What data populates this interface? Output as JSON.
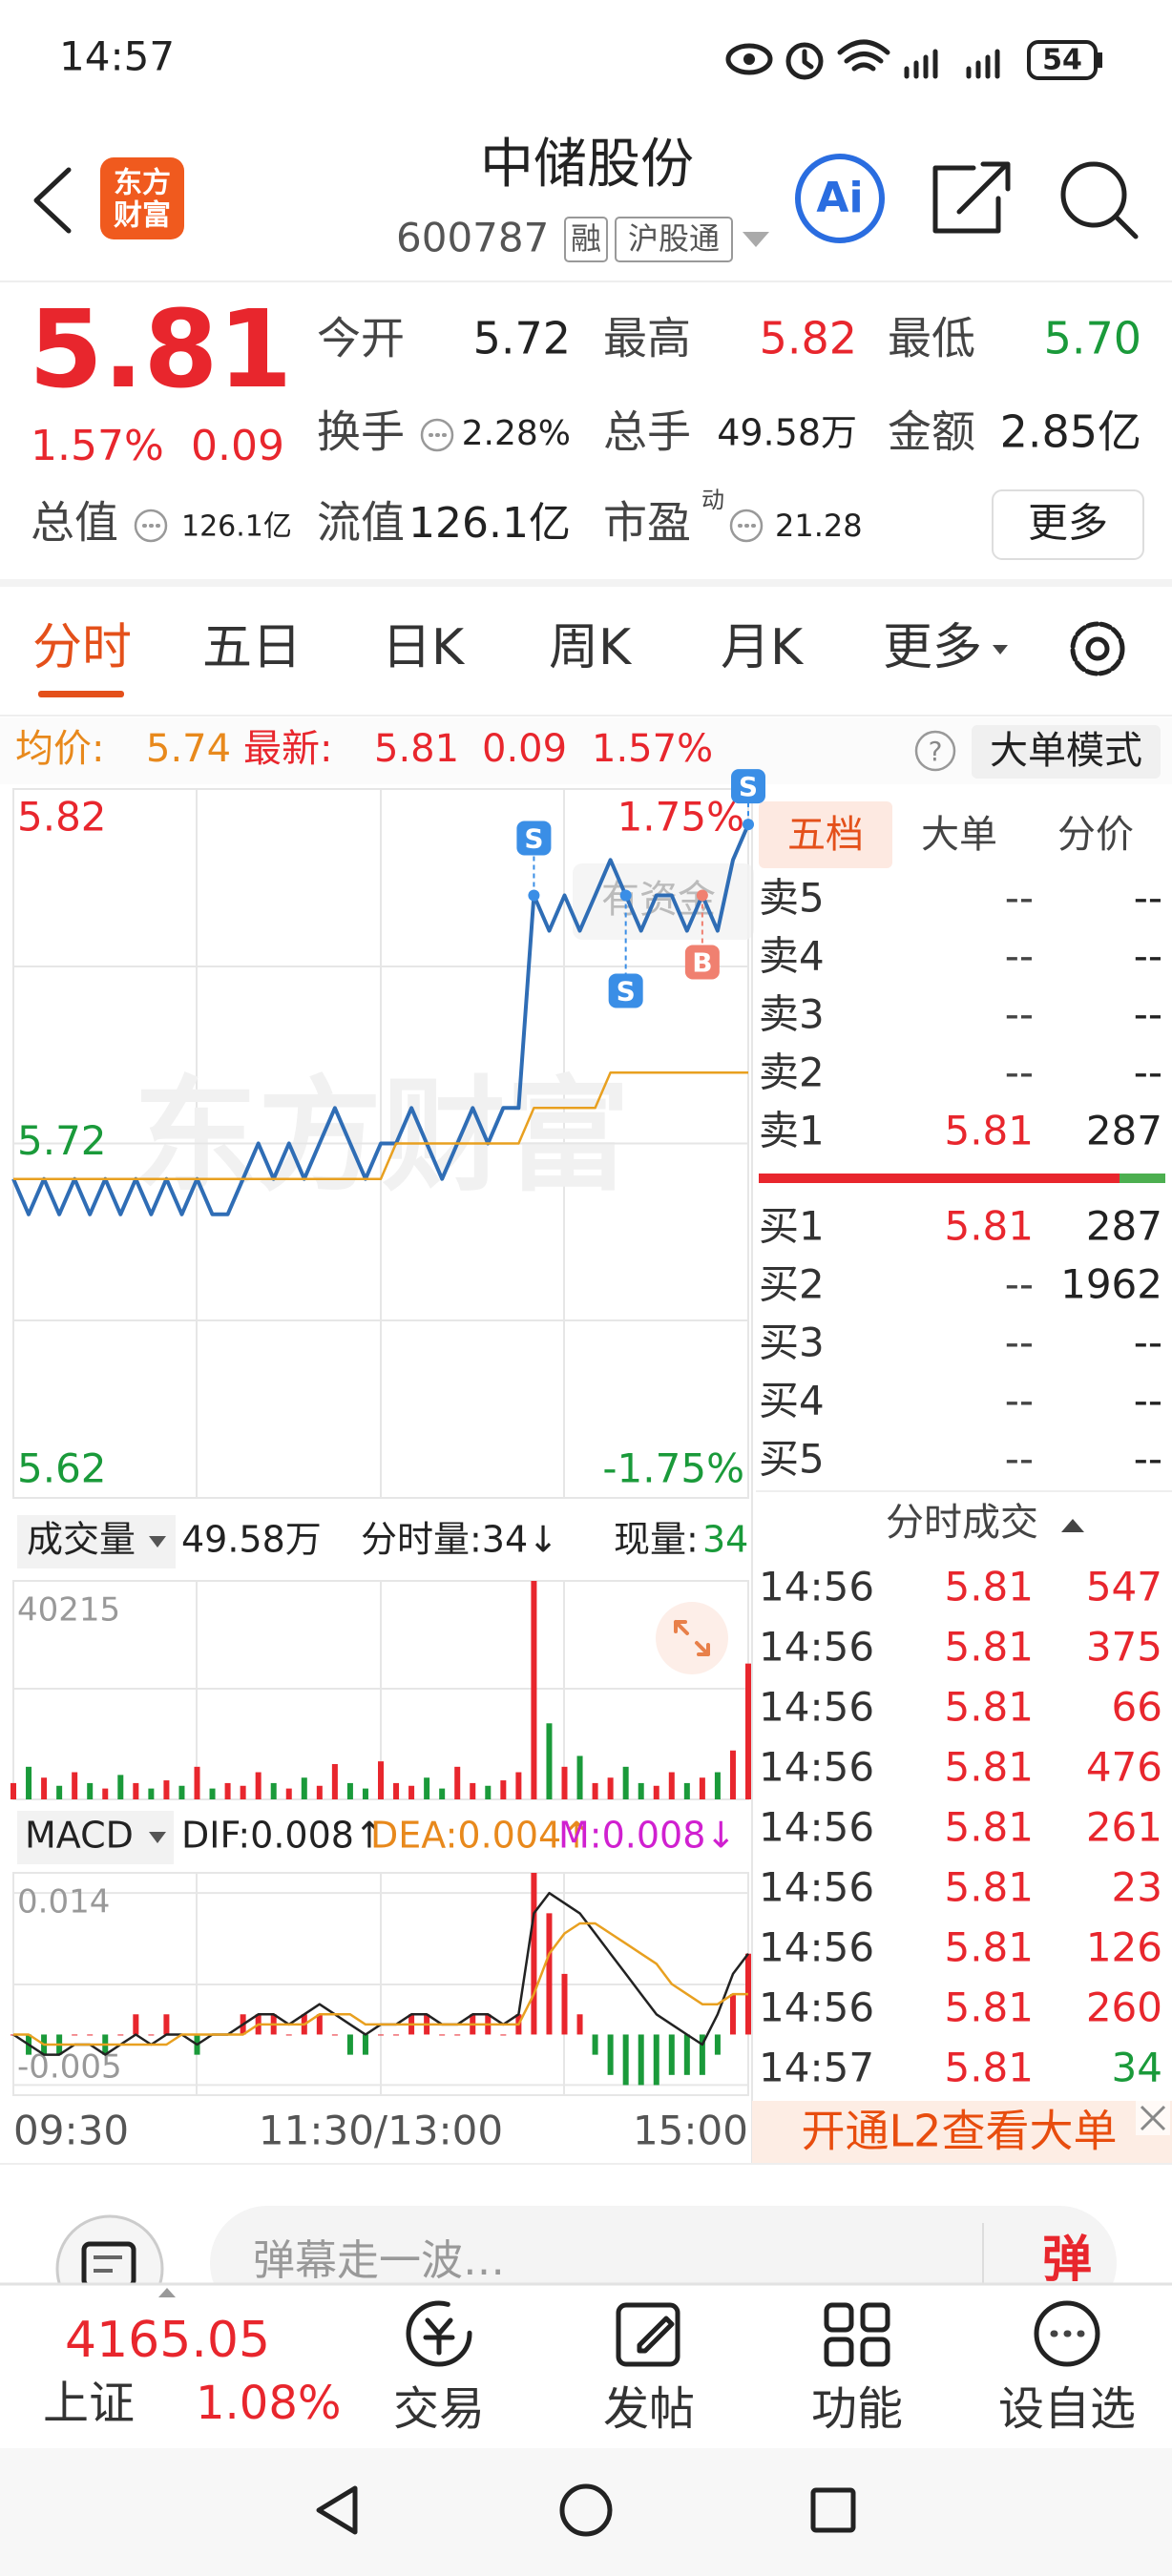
{
  "status_bar": {
    "time": "14:57",
    "battery": "54"
  },
  "header": {
    "logo": [
      "东方",
      "财富"
    ],
    "name": "中储股份",
    "code": "600787",
    "tags": [
      "融",
      "沪股通"
    ],
    "ai": "Ai"
  },
  "quote": {
    "price": "5.81",
    "change_pct": "1.57%",
    "change": "0.09",
    "fields": [
      {
        "label": "今开",
        "value": "5.72"
      },
      {
        "label": "最高",
        "value": "5.82"
      },
      {
        "label": "最低",
        "value": "5.70"
      },
      {
        "label": "换手",
        "value": "2.28%"
      },
      {
        "label": "总手",
        "value": "49.58万"
      },
      {
        "label": "金额",
        "value": "2.85亿"
      },
      {
        "label": "总值",
        "value": "126.1亿"
      },
      {
        "label": "流值",
        "value": "126.1亿"
      },
      {
        "label": "市盈",
        "value": "21.28",
        "sup": "动"
      }
    ],
    "more": "更多"
  },
  "tabs": {
    "items": [
      "分时",
      "五日",
      "日K",
      "周K",
      "月K",
      "更多"
    ],
    "active": 0
  },
  "summary": {
    "avg_label": "均价:",
    "avg": "5.74",
    "latest_label": "最新:",
    "latest": "5.81",
    "change": "0.09",
    "pct": "1.57%",
    "help": "?",
    "mode": "大单模式"
  },
  "watermark": "东方财富",
  "tooltip": "有资金",
  "volume_bar": {
    "label": "成交量",
    "total": "49.58万",
    "tick_vol": "分时量:34↓",
    "now_label": "现量:",
    "now": "34"
  },
  "macd_bar": {
    "label": "MACD",
    "dif": "DIF:0.008↑",
    "dea": "DEA:0.004↑",
    "m": "M:0.008↓"
  },
  "chart_data": [
    {
      "type": "line",
      "xlim": [
        0,
        240
      ],
      "x": [
        0,
        5,
        10,
        15,
        20,
        25,
        30,
        35,
        40,
        45,
        50,
        55,
        60,
        65,
        70,
        75,
        80,
        85,
        90,
        95,
        100,
        105,
        110,
        115,
        120,
        125,
        130,
        135,
        140,
        145,
        150,
        155,
        160,
        165,
        170,
        175,
        180,
        185,
        190,
        195,
        200,
        205,
        210,
        215,
        220,
        225,
        230,
        235,
        240
      ],
      "ylim": [
        5.62,
        5.82
      ],
      "yticks": [
        5.82,
        5.72,
        5.62
      ],
      "y2lim": [
        -1.75,
        1.75
      ],
      "y2ticks": [
        {
          "value": 1.75,
          "label": "1.75%"
        },
        {
          "value": -1.75,
          "label": "-1.75%"
        }
      ],
      "series": [
        {
          "name": "最新",
          "color": "#2f6db5",
          "values": [
            5.71,
            5.7,
            5.71,
            5.7,
            5.71,
            5.7,
            5.71,
            5.7,
            5.71,
            5.7,
            5.71,
            5.7,
            5.71,
            5.7,
            5.7,
            5.71,
            5.72,
            5.71,
            5.72,
            5.71,
            5.72,
            5.73,
            5.72,
            5.71,
            5.72,
            5.72,
            5.73,
            5.72,
            5.71,
            5.72,
            5.73,
            5.72,
            5.73,
            5.73,
            5.79,
            5.78,
            5.79,
            5.78,
            5.79,
            5.8,
            5.79,
            5.78,
            5.79,
            5.79,
            5.78,
            5.79,
            5.78,
            5.8,
            5.81
          ]
        },
        {
          "name": "均价",
          "color": "#e8a020",
          "values": [
            5.71,
            5.71,
            5.71,
            5.71,
            5.71,
            5.71,
            5.71,
            5.71,
            5.71,
            5.71,
            5.71,
            5.71,
            5.71,
            5.71,
            5.71,
            5.71,
            5.71,
            5.71,
            5.71,
            5.71,
            5.71,
            5.71,
            5.71,
            5.71,
            5.71,
            5.72,
            5.72,
            5.72,
            5.72,
            5.72,
            5.72,
            5.72,
            5.72,
            5.72,
            5.73,
            5.73,
            5.73,
            5.73,
            5.73,
            5.74,
            5.74,
            5.74,
            5.74,
            5.74,
            5.74,
            5.74,
            5.74,
            5.74,
            5.74
          ]
        }
      ],
      "markers": [
        {
          "label": "S",
          "x": 170,
          "color": "#3a8ee6"
        },
        {
          "label": "S",
          "x": 200,
          "color": "#3a8ee6"
        },
        {
          "label": "B",
          "x": 225,
          "color": "#f08070"
        },
        {
          "label": "S",
          "x": 240,
          "color": "#3a8ee6"
        }
      ]
    },
    {
      "type": "bar",
      "xlim": [
        0,
        240
      ],
      "x": [
        0,
        5,
        10,
        15,
        20,
        25,
        30,
        35,
        40,
        45,
        50,
        55,
        60,
        65,
        70,
        75,
        80,
        85,
        90,
        95,
        100,
        105,
        110,
        115,
        120,
        125,
        130,
        135,
        140,
        145,
        150,
        155,
        160,
        165,
        170,
        175,
        180,
        185,
        190,
        195,
        200,
        205,
        210,
        215,
        220,
        225,
        230,
        235,
        240
      ],
      "ylim": [
        0,
        40215
      ],
      "yticks": [
        40215
      ],
      "series": [
        {
          "name": "成交量",
          "color": "#e8262d",
          "down_color": "#1a9a3a",
          "values": [
            3000,
            6000,
            4000,
            2500,
            5000,
            3000,
            2000,
            4500,
            3000,
            2000,
            3500,
            2500,
            6000,
            2000,
            3000,
            2500,
            5000,
            3000,
            2000,
            4000,
            2500,
            6500,
            3000,
            2000,
            7000,
            3000,
            2500,
            4000,
            2000,
            6000,
            3000,
            2500,
            3500,
            5000,
            40215,
            14000,
            6000,
            8000,
            3000,
            4000,
            6000,
            3000,
            2500,
            5000,
            3000,
            4000,
            5000,
            9000,
            25000
          ]
        }
      ]
    },
    {
      "type": "line",
      "xlim": [
        0,
        240
      ],
      "x": [
        0,
        5,
        10,
        15,
        20,
        25,
        30,
        35,
        40,
        45,
        50,
        55,
        60,
        65,
        70,
        75,
        80,
        85,
        90,
        95,
        100,
        105,
        110,
        115,
        120,
        125,
        130,
        135,
        140,
        145,
        150,
        155,
        160,
        165,
        170,
        175,
        180,
        185,
        190,
        195,
        200,
        205,
        210,
        215,
        220,
        225,
        230,
        235,
        240
      ],
      "xticks": [
        {
          "value": 0,
          "label": "09:30"
        },
        {
          "value": 120,
          "label": "11:30/13:00"
        },
        {
          "value": 240,
          "label": "15:00"
        }
      ],
      "ylim": [
        -0.006,
        0.016
      ],
      "yticks": [
        0.014,
        -0.005
      ],
      "series": [
        {
          "name": "M",
          "kind": "bar",
          "color": "#e8262d",
          "down_color": "#1a9a3a",
          "values": [
            0,
            -0.002,
            -0.002,
            -0.002,
            0,
            0,
            -0.002,
            0,
            0.002,
            0,
            0.002,
            0,
            -0.002,
            0,
            0,
            0.002,
            0.002,
            0.002,
            0,
            0.002,
            0.002,
            0,
            -0.002,
            -0.002,
            0,
            0,
            0.002,
            0.002,
            0,
            0,
            0.002,
            0.002,
            0,
            0.002,
            0.016,
            0.012,
            0.006,
            0.002,
            -0.002,
            -0.004,
            -0.005,
            -0.005,
            -0.005,
            -0.004,
            -0.004,
            -0.004,
            -0.002,
            0.004,
            0.008
          ]
        },
        {
          "name": "DIF",
          "color": "#222222",
          "values": [
            0,
            -0.001,
            -0.002,
            -0.002,
            -0.001,
            -0.001,
            -0.002,
            -0.001,
            0,
            -0.001,
            0,
            0,
            -0.001,
            0,
            0,
            0.001,
            0.002,
            0.002,
            0.001,
            0.002,
            0.003,
            0.002,
            0.001,
            0,
            0.001,
            0.001,
            0.002,
            0.002,
            0.001,
            0.001,
            0.002,
            0.002,
            0.001,
            0.002,
            0.012,
            0.014,
            0.013,
            0.012,
            0.01,
            0.008,
            0.006,
            0.004,
            0.002,
            0.001,
            0,
            -0.001,
            0.002,
            0.006,
            0.008
          ]
        },
        {
          "name": "DEA",
          "color": "#e8a020",
          "values": [
            0,
            0,
            -0.001,
            -0.001,
            -0.001,
            -0.001,
            -0.001,
            -0.001,
            -0.001,
            -0.001,
            -0.001,
            0,
            0,
            0,
            0,
            0,
            0.001,
            0.001,
            0.001,
            0.001,
            0.002,
            0.002,
            0.002,
            0.001,
            0.001,
            0.001,
            0.001,
            0.001,
            0.001,
            0.001,
            0.001,
            0.001,
            0.001,
            0.001,
            0.004,
            0.008,
            0.01,
            0.011,
            0.011,
            0.01,
            0.009,
            0.008,
            0.007,
            0.005,
            0.004,
            0.003,
            0.003,
            0.004,
            0.004
          ]
        }
      ]
    }
  ],
  "order_book": {
    "tabs": [
      "五档",
      "大单",
      "分价"
    ],
    "active": 0,
    "sells": [
      {
        "label": "卖5",
        "price": "--",
        "volume": "--"
      },
      {
        "label": "卖4",
        "price": "--",
        "volume": "--"
      },
      {
        "label": "卖3",
        "price": "--",
        "volume": "--"
      },
      {
        "label": "卖2",
        "price": "--",
        "volume": "--"
      },
      {
        "label": "卖1",
        "price": "5.81",
        "volume": "287"
      }
    ],
    "buys": [
      {
        "label": "买1",
        "price": "5.81",
        "volume": "287"
      },
      {
        "label": "买2",
        "price": "--",
        "volume": "1962"
      },
      {
        "label": "买3",
        "price": "--",
        "volume": "--"
      },
      {
        "label": "买4",
        "price": "--",
        "volume": "--"
      },
      {
        "label": "买5",
        "price": "--",
        "volume": "--"
      }
    ]
  },
  "trades": {
    "title": "分时成交",
    "rows": [
      {
        "time": "14:56",
        "price": "5.81",
        "volume": "547",
        "side": "up"
      },
      {
        "time": "14:56",
        "price": "5.81",
        "volume": "375",
        "side": "up"
      },
      {
        "time": "14:56",
        "price": "5.81",
        "volume": "66",
        "side": "up"
      },
      {
        "time": "14:56",
        "price": "5.81",
        "volume": "476",
        "side": "up"
      },
      {
        "time": "14:56",
        "price": "5.81",
        "volume": "261",
        "side": "up"
      },
      {
        "time": "14:56",
        "price": "5.81",
        "volume": "23",
        "side": "up"
      },
      {
        "time": "14:56",
        "price": "5.81",
        "volume": "126",
        "side": "up"
      },
      {
        "time": "14:56",
        "price": "5.81",
        "volume": "260",
        "side": "up"
      },
      {
        "time": "14:57",
        "price": "5.81",
        "volume": "34",
        "side": "down"
      }
    ]
  },
  "l2": "开通L2查看大单",
  "comment": {
    "placeholder": "弹幕走一波…",
    "button": "弹"
  },
  "bottom_nav": {
    "index_value": "4165.05",
    "index_name": "上证",
    "index_pct": "1.08%",
    "items": [
      "交易",
      "发帖",
      "功能",
      "设自选"
    ]
  }
}
